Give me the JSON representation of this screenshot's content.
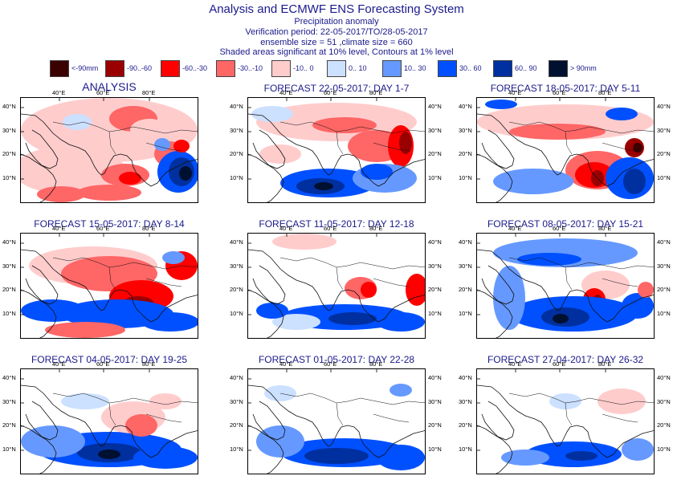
{
  "header": {
    "title": "Analysis and ECMWF ENS Forecasting System",
    "subtitle": "Precipitation anomaly",
    "verification": "Verification period: 22-05-2017/TO/28-05-2017",
    "ensemble": "ensemble size = 51  ,climate size = 660",
    "note": "Shaded areas significant at 10% level, Contours at 1% level"
  },
  "legend": [
    {
      "label": "<-90mm",
      "color": "#3b0000"
    },
    {
      "label": "-90..-60",
      "color": "#9b0000"
    },
    {
      "label": "-60..-30",
      "color": "#ff0000"
    },
    {
      "label": "-30..-10",
      "color": "#ff6666"
    },
    {
      "label": "-10.. 0",
      "color": "#ffcccc"
    },
    {
      "label": "0.. 10",
      "color": "#cce0ff"
    },
    {
      "label": "10.. 30",
      "color": "#6699ff"
    },
    {
      "label": "30.. 60",
      "color": "#0050ff"
    },
    {
      "label": "60.. 90",
      "color": "#0030a0"
    },
    {
      "label": "> 90mm",
      "color": "#001030"
    }
  ],
  "axes": {
    "lon_labels": [
      "40°E",
      "60°E",
      "80°E"
    ],
    "lat_labels": [
      "40°N",
      "30°N",
      "20°N",
      "10°N"
    ]
  },
  "panels": [
    {
      "title": "ANALYSIS"
    },
    {
      "title": "FORECAST 22-05-2017: DAY 1-7"
    },
    {
      "title": "FORECAST 18-05-2017: DAY 5-11"
    },
    {
      "title": "FORECAST 15-05-2017: DAY 8-14"
    },
    {
      "title": "FORECAST 11-05-2017: DAY 12-18"
    },
    {
      "title": "FORECAST 08-05-2017: DAY 15-21"
    },
    {
      "title": "FORECAST 04-05-2017: DAY 19-25"
    },
    {
      "title": "FORECAST 01-05-2017: DAY 22-28"
    },
    {
      "title": "FORECAST 27-04-2017: DAY 26-32"
    }
  ]
}
